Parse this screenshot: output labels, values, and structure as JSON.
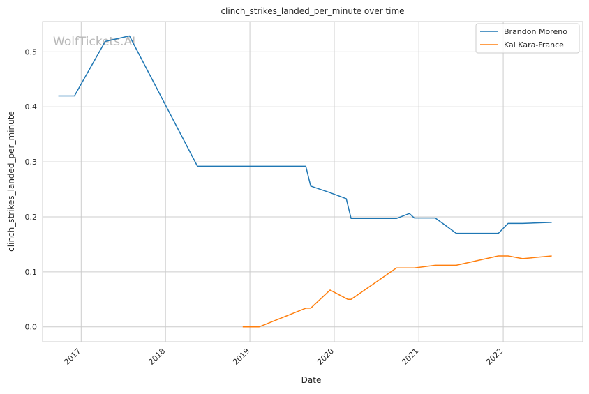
{
  "chart_data": {
    "type": "line",
    "title": "clinch_strikes_landed_per_minute over time",
    "xlabel": "Date",
    "ylabel": "clinch_strikes_landed_per_minute",
    "watermark": "WolfTickets.AI",
    "x_tick_labels": [
      "2017",
      "2018",
      "2019",
      "2020",
      "2021",
      "2022"
    ],
    "y_tick_labels": [
      "0.0",
      "0.1",
      "0.2",
      "0.3",
      "0.4",
      "0.5"
    ],
    "y_ticks": [
      0.0,
      0.1,
      0.2,
      0.3,
      0.4,
      0.5
    ],
    "xlim": [
      "2016-07-18",
      "2022-12-11"
    ],
    "ylim": [
      -0.027,
      0.555
    ],
    "grid": true,
    "legend_position": "top-right",
    "series": [
      {
        "name": "Brandon Moreno",
        "color": "#1f77b4",
        "points": [
          [
            "2016-09-24",
            0.42
          ],
          [
            "2016-12-03",
            0.42
          ],
          [
            "2017-04-15",
            0.519
          ],
          [
            "2017-07-29",
            0.529
          ],
          [
            "2018-05-19",
            0.292
          ],
          [
            "2019-08-31",
            0.292
          ],
          [
            "2019-09-21",
            0.256
          ],
          [
            "2019-12-14",
            0.244
          ],
          [
            "2020-02-22",
            0.233
          ],
          [
            "2020-03-14",
            0.197
          ],
          [
            "2020-09-26",
            0.197
          ],
          [
            "2020-11-21",
            0.206
          ],
          [
            "2020-12-12",
            0.198
          ],
          [
            "2021-03-13",
            0.198
          ],
          [
            "2021-06-12",
            0.17
          ],
          [
            "2021-12-11",
            0.17
          ],
          [
            "2022-01-22",
            0.188
          ],
          [
            "2022-03-26",
            0.188
          ],
          [
            "2022-07-30",
            0.19
          ]
        ]
      },
      {
        "name": "Kai Kara-France",
        "color": "#ff7f0e",
        "points": [
          [
            "2018-12-01",
            0.0
          ],
          [
            "2019-02-10",
            0.0
          ],
          [
            "2019-08-31",
            0.034
          ],
          [
            "2019-09-21",
            0.034
          ],
          [
            "2019-12-14",
            0.067
          ],
          [
            "2020-02-29",
            0.05
          ],
          [
            "2020-03-14",
            0.05
          ],
          [
            "2020-09-26",
            0.107
          ],
          [
            "2020-12-12",
            0.107
          ],
          [
            "2021-03-13",
            0.112
          ],
          [
            "2021-06-12",
            0.112
          ],
          [
            "2021-12-11",
            0.129
          ],
          [
            "2022-01-22",
            0.129
          ],
          [
            "2022-03-26",
            0.124
          ],
          [
            "2022-07-30",
            0.129
          ]
        ]
      }
    ]
  }
}
